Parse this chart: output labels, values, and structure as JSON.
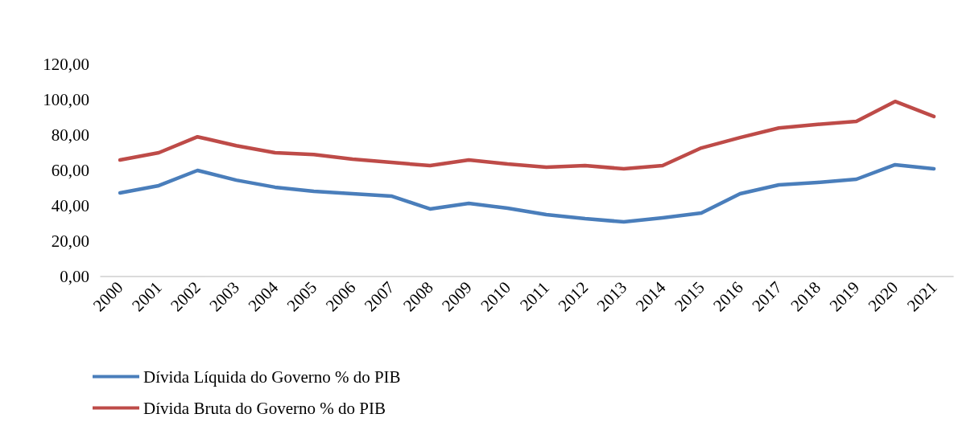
{
  "chart_data": {
    "type": "line",
    "categories": [
      "2000",
      "2001",
      "2002",
      "2003",
      "2004",
      "2005",
      "2006",
      "2007",
      "2008",
      "2009",
      "2010",
      "2011",
      "2012",
      "2013",
      "2014",
      "2015",
      "2016",
      "2017",
      "2018",
      "2019",
      "2020",
      "2021"
    ],
    "series": [
      {
        "name": "Dívida Líquida do Governo % do PIB",
        "color": "#4a7ebb",
        "values": [
          47.3,
          51.4,
          60,
          54.5,
          50.5,
          48.2,
          46.8,
          45.5,
          38.2,
          41.4,
          38.6,
          35,
          32.7,
          30.9,
          33.2,
          35.9,
          46.8,
          51.8,
          53.2,
          55,
          63.2,
          60.9
        ]
      },
      {
        "name": "Dívida Bruta do Governo % do PIB",
        "color": "#be4b48",
        "values": [
          65.9,
          70,
          79,
          74,
          70,
          69,
          66.4,
          64.5,
          62.7,
          65.9,
          63.6,
          61.8,
          62.7,
          60.9,
          62.7,
          72.7,
          78.6,
          84,
          86,
          87.7,
          99,
          90.5
        ]
      }
    ],
    "ylim": [
      0,
      120
    ],
    "yticks": [
      {
        "value": 0,
        "label": "0,00"
      },
      {
        "value": 20,
        "label": "20,00"
      },
      {
        "value": 40,
        "label": "40,00"
      },
      {
        "value": 60,
        "label": "60,00"
      },
      {
        "value": 80,
        "label": "80,00"
      },
      {
        "value": 100,
        "label": "100,00"
      },
      {
        "value": 120,
        "label": "120,00"
      }
    ],
    "grid": false,
    "legend": "bottom left",
    "marker": "none",
    "line_style": "solid"
  }
}
